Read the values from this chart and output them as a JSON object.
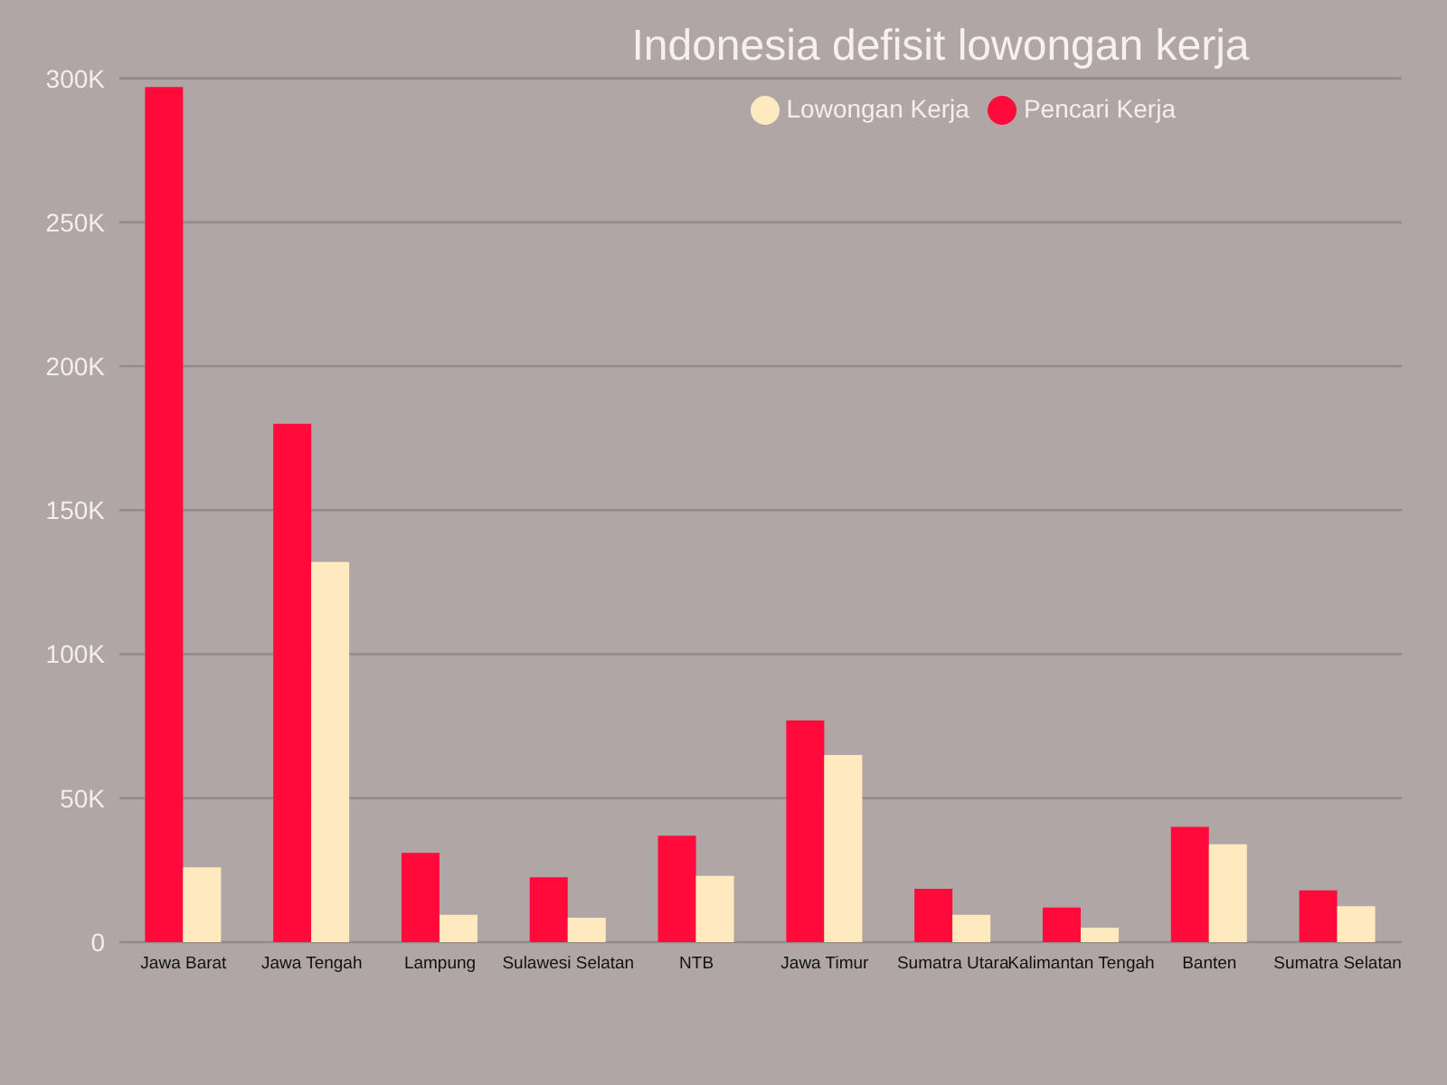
{
  "chart_data": {
    "type": "bar",
    "title": "Indonesia defisit lowongan kerja",
    "categories": [
      "Jawa Barat",
      "Jawa Tengah",
      "Lampung",
      "Sulawesi Selatan",
      "NTB",
      "Jawa Timur",
      "Sumatra Utara",
      "Kalimantan Tengah",
      "Banten",
      "Sumatra Selatan"
    ],
    "series": [
      {
        "name": "Pencari Kerja",
        "color": "#ff0a3a",
        "values": [
          297000,
          180000,
          31000,
          22500,
          37000,
          77000,
          18500,
          12000,
          40000,
          18000
        ]
      },
      {
        "name": "Lowongan Kerja",
        "color": "#ffeabf",
        "values": [
          26000,
          132000,
          9500,
          8500,
          23000,
          65000,
          9500,
          5000,
          34000,
          12500
        ]
      }
    ],
    "ylim": [
      0,
      300000
    ],
    "yticks": [
      0,
      {
        "value": 50000,
        "label": "50K"
      },
      {
        "value": 100000,
        "label": "100K"
      },
      {
        "value": 150000,
        "label": "150K"
      },
      {
        "value": 200000,
        "label": "200K"
      },
      {
        "value": 250000,
        "label": "250K"
      },
      {
        "value": 300000,
        "label": "300K"
      }
    ],
    "grid": "y",
    "legend": "top right"
  }
}
